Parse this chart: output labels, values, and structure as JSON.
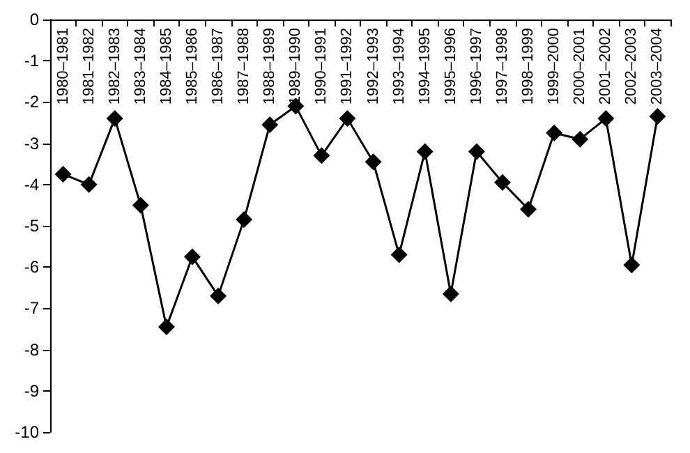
{
  "chart_data": {
    "type": "line",
    "categories": [
      "1980–1981",
      "1981–1982",
      "1982–1983",
      "1983–1984",
      "1984–1985",
      "1985–1986",
      "1986–1987",
      "1987–1988",
      "1988–1989",
      "1989–1990",
      "1990–1991",
      "1991–1992",
      "1992–1993",
      "1993–1994",
      "1994–1995",
      "1995–1996",
      "1996–1997",
      "1997–1998",
      "1998–1999",
      "1999–2000",
      "2000–2001",
      "2001–2002",
      "2002–2003",
      "2003–2004"
    ],
    "series": [
      {
        "color": "#000000",
        "values": [
          -3.75,
          -4.0,
          -2.4,
          -4.5,
          -7.45,
          -5.75,
          -6.7,
          -4.85,
          -2.55,
          -2.1,
          -3.3,
          -2.4,
          -3.45,
          -5.7,
          -3.2,
          -6.65,
          -3.2,
          -3.95,
          -4.6,
          -2.75,
          -2.9,
          -2.4,
          -5.95,
          -2.35
        ]
      }
    ],
    "ylim": [
      -10,
      0
    ],
    "yticks": [
      -10,
      -9,
      -8,
      -7,
      -6,
      -5,
      -4,
      -3,
      -2,
      -1,
      0
    ],
    "grid": false,
    "marker": "diamond",
    "line_style": "solid"
  }
}
